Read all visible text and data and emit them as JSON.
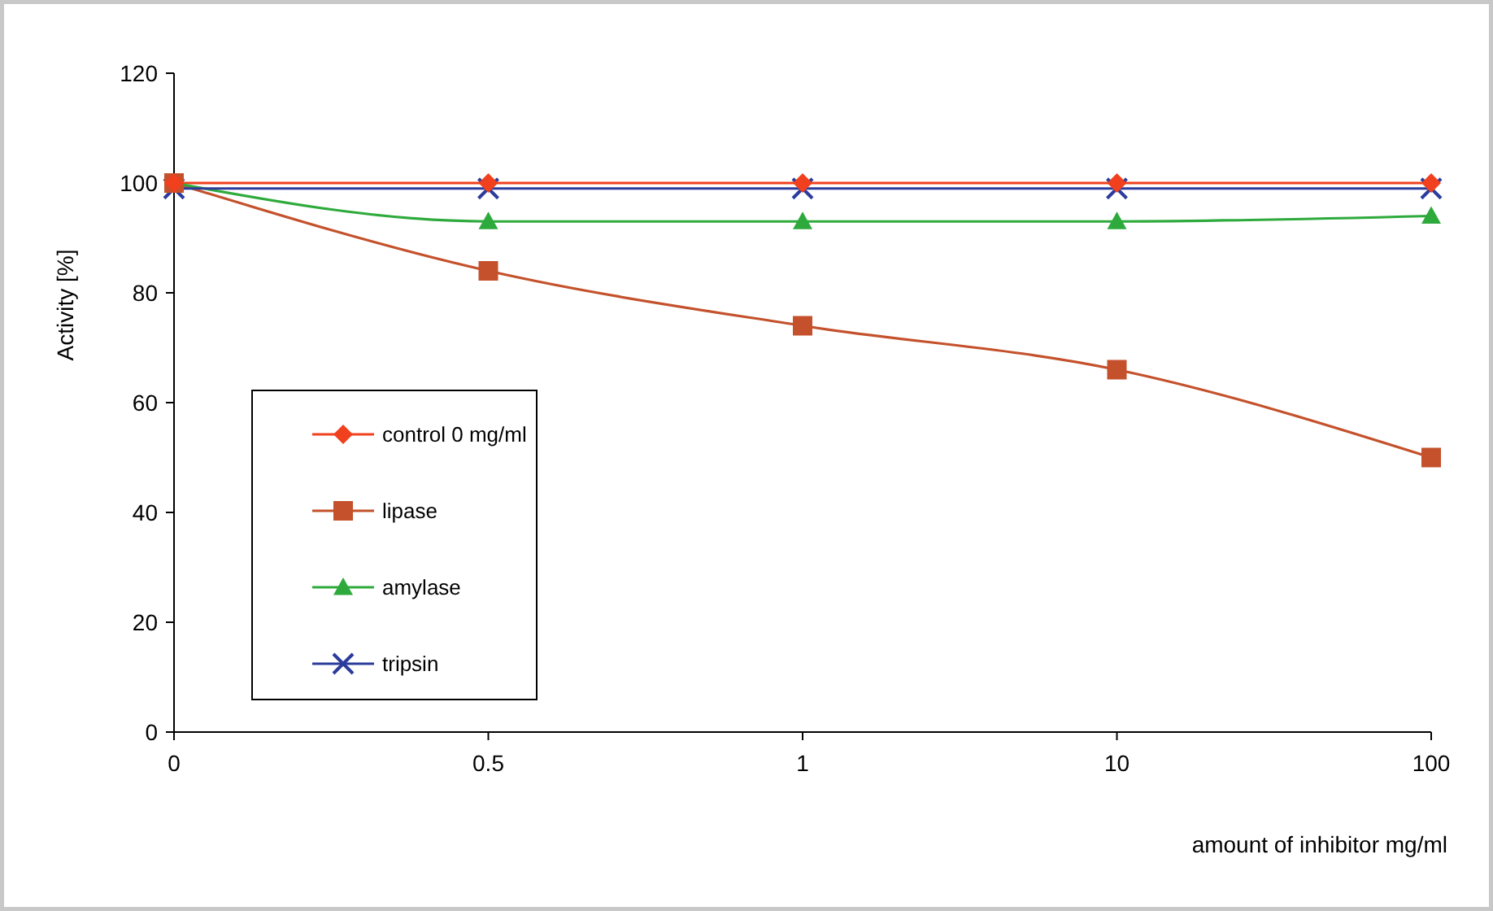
{
  "chart_data": {
    "type": "line",
    "xlabel": "amount of inhibitor mg/ml",
    "ylabel": "Activity  [%]",
    "categories": [
      "0",
      "0.5",
      "1",
      "10",
      "100"
    ],
    "ylim": [
      0,
      120
    ],
    "yticks": [
      0,
      20,
      40,
      60,
      80,
      100,
      120
    ],
    "grid": false,
    "legend": "bottom left",
    "line_style": "solid",
    "series": [
      {
        "name": "control 0 mg/ml",
        "color": "#f0401e",
        "marker": "diamond",
        "values": [
          100,
          100,
          100,
          100,
          100
        ]
      },
      {
        "name": "lipase",
        "color": "#c4512b",
        "marker": "square",
        "values": [
          100,
          84,
          74,
          66,
          50
        ]
      },
      {
        "name": "amylase",
        "color": "#2eaa3c",
        "marker": "triangle",
        "values": [
          100,
          93,
          93,
          93,
          94
        ]
      },
      {
        "name": "tripsin",
        "color": "#2c3c9c",
        "marker": "cross",
        "values": [
          99,
          99,
          99,
          99,
          99
        ]
      }
    ]
  }
}
